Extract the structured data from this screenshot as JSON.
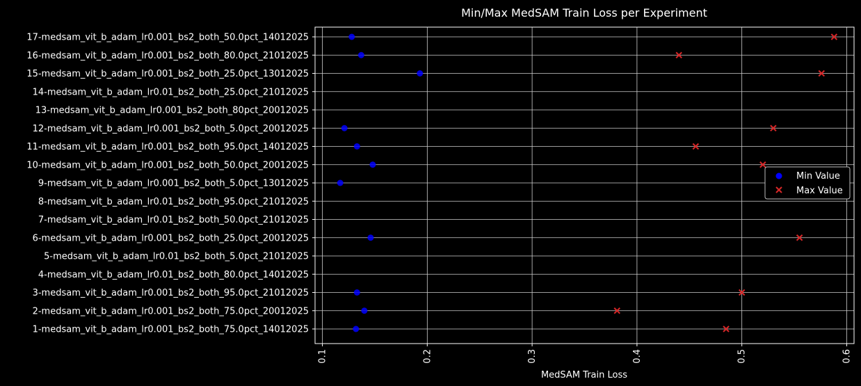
{
  "chart_data": {
    "type": "scatter",
    "title": "Min/Max MedSAM Train Loss per Experiment",
    "xlabel": "MedSAM Train Loss",
    "ylabel": "",
    "xlim": [
      0.093,
      0.607
    ],
    "xticks": [
      0.1,
      0.2,
      0.3,
      0.4,
      0.5,
      0.6
    ],
    "xtick_labels": [
      "0.1",
      "0.2",
      "0.3",
      "0.4",
      "0.5",
      "0.6"
    ],
    "grid": true,
    "legend_position": "center-right",
    "categories": [
      "1-medsam_vit_b_adam_lr0.001_bs2_both_75.0pct_14012025",
      "2-medsam_vit_b_adam_lr0.001_bs2_both_75.0pct_20012025",
      "3-medsam_vit_b_adam_lr0.001_bs2_both_95.0pct_21012025",
      "4-medsam_vit_b_adam_lr0.01_bs2_both_80.0pct_14012025",
      "5-medsam_vit_b_adam_lr0.01_bs2_both_5.0pct_21012025",
      "6-medsam_vit_b_adam_lr0.001_bs2_both_25.0pct_20012025",
      "7-medsam_vit_b_adam_lr0.01_bs2_both_50.0pct_21012025",
      "8-medsam_vit_b_adam_lr0.01_bs2_both_95.0pct_21012025",
      "9-medsam_vit_b_adam_lr0.001_bs2_both_5.0pct_13012025",
      "10-medsam_vit_b_adam_lr0.001_bs2_both_50.0pct_20012025",
      "11-medsam_vit_b_adam_lr0.001_bs2_both_95.0pct_14012025",
      "12-medsam_vit_b_adam_lr0.001_bs2_both_5.0pct_20012025",
      "13-medsam_vit_b_adam_lr0.001_bs2_both_80pct_20012025",
      "14-medsam_vit_b_adam_lr0.01_bs2_both_25.0pct_21012025",
      "15-medsam_vit_b_adam_lr0.001_bs2_both_25.0pct_13012025",
      "16-medsam_vit_b_adam_lr0.001_bs2_both_80.0pct_21012025",
      "17-medsam_vit_b_adam_lr0.001_bs2_both_50.0pct_14012025"
    ],
    "series": [
      {
        "name": "Min Value",
        "marker": "circle",
        "color": "#0000ff",
        "values": [
          0.132,
          0.14,
          0.133,
          null,
          null,
          0.146,
          null,
          null,
          0.117,
          0.148,
          0.133,
          0.121,
          null,
          null,
          0.193,
          0.137,
          0.128
        ]
      },
      {
        "name": "Max Value",
        "marker": "x",
        "color": "#d62728",
        "values": [
          0.485,
          0.381,
          0.5,
          null,
          null,
          0.555,
          null,
          null,
          null,
          0.52,
          0.456,
          0.53,
          null,
          null,
          0.576,
          0.44,
          0.588
        ]
      }
    ]
  },
  "colors": {
    "background": "#000000",
    "text": "#ffffff",
    "grid": "#d0d0d0",
    "min_series": "#0000ff",
    "max_series": "#d62728"
  }
}
